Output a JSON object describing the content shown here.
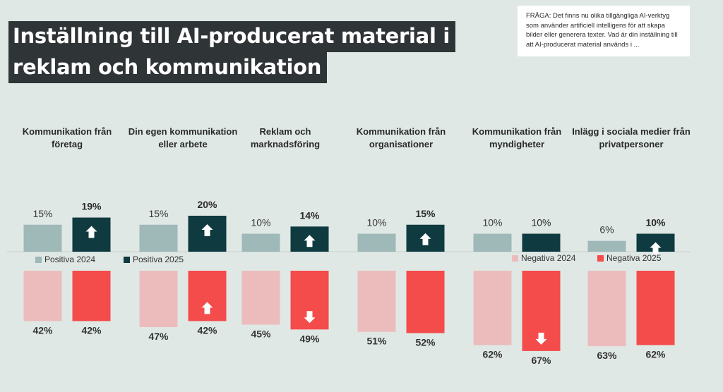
{
  "title_lines": [
    "Inställning till AI-producerat material i",
    "reklam och kommunikation"
  ],
  "question": "FRÅGA: Det finns nu olika tillgängliga AI-verktyg som använder artificiell intelligens för att skapa bilder eller generera texter. Vad är din inställning till att AI-producerat material används i ...",
  "chart_data": {
    "type": "bar",
    "categories": [
      [
        "Kommunikation från",
        "företag"
      ],
      [
        "Din egen kommunikation",
        "eller arbete"
      ],
      [
        "Reklam och",
        "marknadsföring"
      ],
      [
        "Kommunikation från",
        "organisationer"
      ],
      [
        "Kommunikation från",
        "myndigheter"
      ],
      [
        "Inlägg i sociala medier från",
        "privatpersoner"
      ]
    ],
    "series": [
      {
        "name": "Positiva 2024",
        "values": [
          15,
          15,
          10,
          10,
          10,
          6
        ],
        "color": "#9fb8b8"
      },
      {
        "name": "Positiva 2025",
        "values": [
          19,
          20,
          14,
          15,
          10,
          10
        ],
        "color": "#0f3a3f",
        "change_arrows": [
          "up",
          "up",
          "up",
          "up",
          "none",
          "up"
        ],
        "bold": [
          true,
          true,
          true,
          true,
          false,
          true
        ]
      },
      {
        "name": "Negativa 2024",
        "values": [
          42,
          47,
          45,
          51,
          62,
          63
        ],
        "color": "#ecbcbc"
      },
      {
        "name": "Negativa 2025",
        "values": [
          42,
          42,
          49,
          52,
          67,
          62
        ],
        "color": "#f44b4b",
        "change_arrows": [
          "none",
          "up",
          "down",
          "none",
          "down",
          "none"
        ]
      }
    ],
    "value_suffix": "%",
    "legend": {
      "positive": "top-left, below axis",
      "negative": "right, below axis"
    }
  }
}
